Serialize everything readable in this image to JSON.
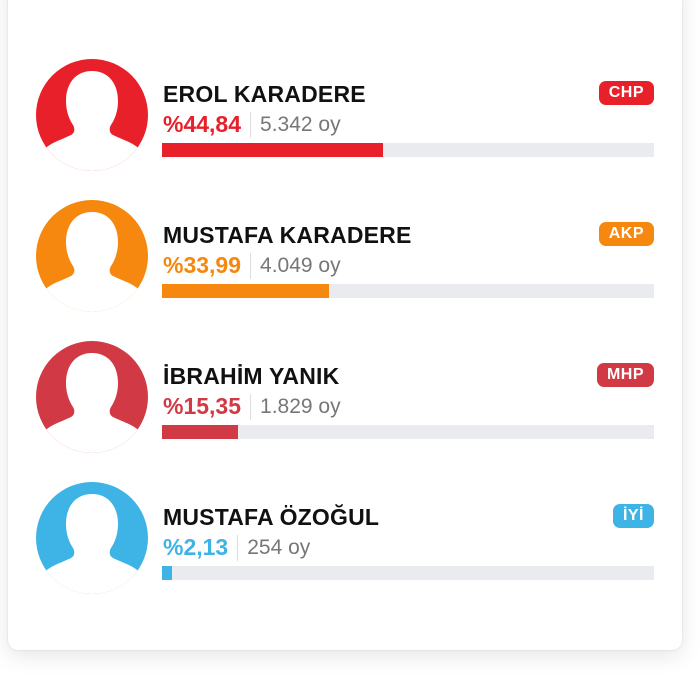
{
  "candidates": [
    {
      "name": "EROL KARADERE",
      "party": "CHP",
      "percent_label": "%44,84",
      "votes_label": "5.342 oy",
      "percent": 44.84,
      "color": "#e8202a",
      "avatar_icon": "person-silhouette-icon"
    },
    {
      "name": "MUSTAFA KARADERE",
      "party": "AKP",
      "percent_label": "%33,99",
      "votes_label": "4.049 oy",
      "percent": 33.99,
      "color": "#f6870f",
      "avatar_icon": "person-silhouette-icon"
    },
    {
      "name": "İBRAHİM YANIK",
      "party": "MHP",
      "percent_label": "%15,35",
      "votes_label": "1.829 oy",
      "percent": 15.35,
      "color": "#d13a45",
      "avatar_icon": "person-silhouette-icon"
    },
    {
      "name": "MUSTAFA ÖZOĞUL",
      "party": "İYİ",
      "percent_label": "%2,13",
      "votes_label": "254 oy",
      "percent": 2.13,
      "color": "#3eb3e6",
      "avatar_icon": "person-silhouette-icon"
    }
  ]
}
